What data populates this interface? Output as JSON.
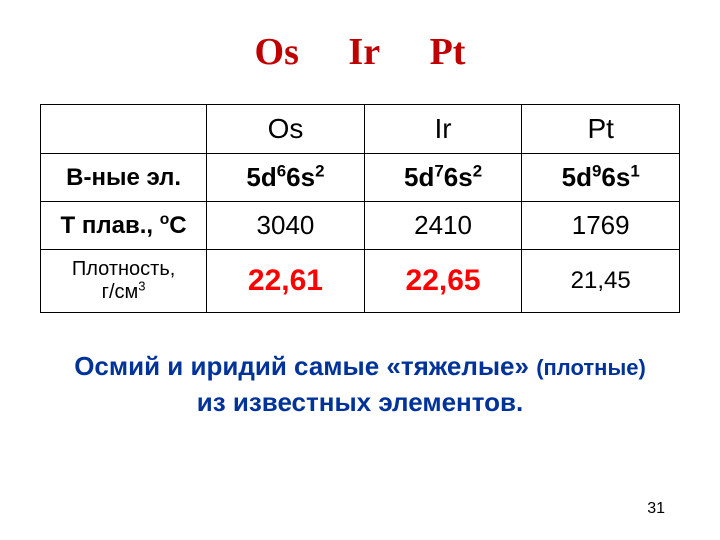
{
  "title": {
    "e1": "Os",
    "e2": "Ir",
    "e3": "Pt"
  },
  "table": {
    "header": {
      "c0": "",
      "c1": "Os",
      "c2": "Ir",
      "c3": "Pt"
    },
    "row_ec": {
      "label": "В-ные эл.",
      "os": {
        "d": "5d",
        "dn": "6",
        "s": "6s",
        "sn": "2"
      },
      "ir": {
        "d": "5d",
        "dn": "7",
        "s": "6s",
        "sn": "2"
      },
      "pt": {
        "d": "5d",
        "dn": "9",
        "s": "6s",
        "sn": "1"
      }
    },
    "row_temp": {
      "label_a": "Т плав., ",
      "label_deg": "о",
      "label_c": "С",
      "os": "3040",
      "ir": "2410",
      "pt": "1769"
    },
    "row_density": {
      "label_a": "Плотность,",
      "label_b": "г/см",
      "label_exp": "3",
      "os": "22,61",
      "ir": "22,65",
      "pt": "21,45"
    }
  },
  "footer": {
    "line1a": "Осмий и иридий самые «тяжелые» ",
    "line1b": "(плотные)",
    "line2": "из известных элементов."
  },
  "page_number": "31",
  "colors": {
    "title": "#c00000",
    "red": "#ff0000",
    "blue": "#003399",
    "border": "#000000",
    "bg": "#ffffff"
  }
}
